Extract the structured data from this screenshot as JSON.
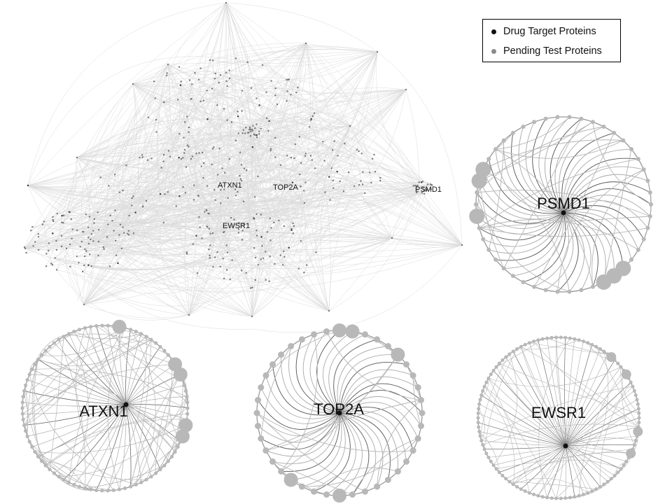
{
  "legend": {
    "items": [
      {
        "label": "Drug Target Proteins",
        "color": "#111111"
      },
      {
        "label": "Pending Test Proteins",
        "color": "#8a8a8a"
      }
    ]
  },
  "main_network": {
    "labels": [
      "ATXN1",
      "TOP2A",
      "PSMD1",
      "EWSR1"
    ]
  },
  "subnetworks": [
    {
      "name": "PSMD1"
    },
    {
      "name": "ATXN1"
    },
    {
      "name": "TOP2A"
    },
    {
      "name": "EWSR1"
    }
  ],
  "colors": {
    "edge": "#bdbdbd",
    "node": "#b8b8b8",
    "target": "#111111",
    "pending": "#8a8a8a"
  }
}
